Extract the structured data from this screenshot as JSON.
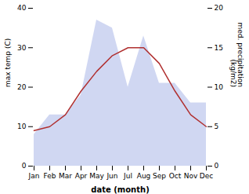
{
  "chart_data": {
    "type": "line",
    "categories": [
      "Jan",
      "Feb",
      "Mar",
      "Apr",
      "May",
      "Jun",
      "Jul",
      "Aug",
      "Sep",
      "Oct",
      "Nov",
      "Dec"
    ],
    "series": [
      {
        "type": "area",
        "axis": "y2",
        "color": "#c8d0f0",
        "values": [
          4,
          6.5,
          6.5,
          9,
          18.5,
          17.5,
          10,
          16.5,
          10.5,
          10.5,
          8,
          8
        ]
      },
      {
        "type": "line",
        "color": "#b03030",
        "values": [
          9,
          10,
          13,
          19,
          24,
          28,
          30,
          30,
          26,
          19,
          13,
          10
        ]
      }
    ],
    "xlabel": "date (month)",
    "ylabel": "max temp (C)",
    "y2label": "med. precipitation\n(kg/m2)",
    "ylim": [
      0,
      40
    ],
    "yticks": [
      0,
      10,
      20,
      30,
      40
    ],
    "y2lim": [
      0,
      20
    ],
    "y2ticks": [
      0,
      5,
      10,
      15,
      20
    ],
    "grid": false
  }
}
